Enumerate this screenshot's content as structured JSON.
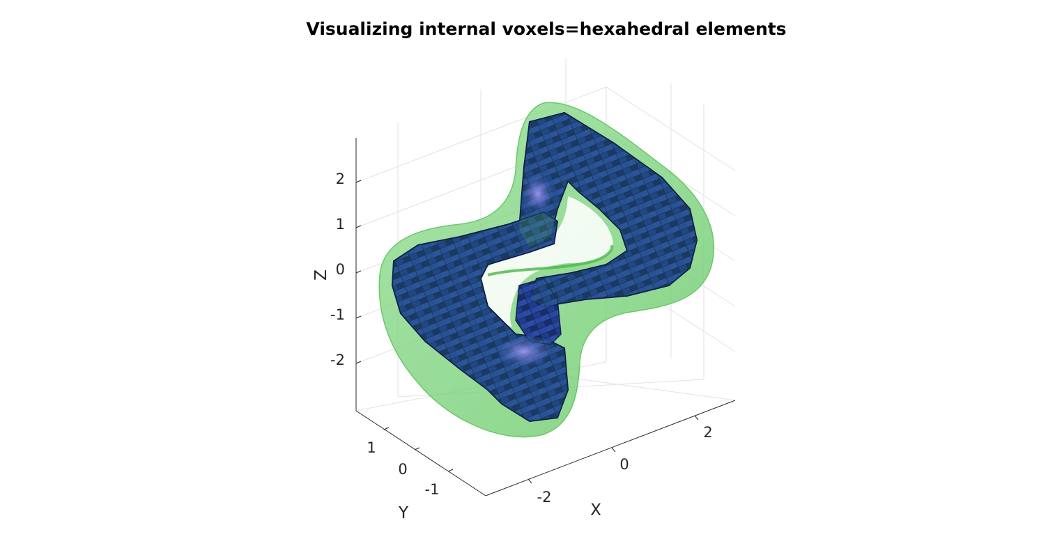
{
  "figure": {
    "title": "Visualizing internal voxels=hexahedral elements",
    "axes": {
      "x": {
        "label": "X",
        "ticks": [
          "-2",
          "0",
          "2"
        ]
      },
      "y": {
        "label": "Y",
        "ticks": [
          "1",
          "0",
          "-1"
        ]
      },
      "z": {
        "label": "Z",
        "ticks": [
          "2",
          "1",
          "0",
          "-1",
          "-2"
        ]
      }
    },
    "surface": {
      "description_color_outer": "#7fd07f",
      "description_color_inner": "#1a2e8a"
    },
    "colors": {
      "outer_surface": "#5cc85c",
      "voxel_dark": "#0c1c6e",
      "voxel_mid": "#1e3aa8",
      "voxel_light": "#3a5ee0",
      "highlight": "#8a7ae8"
    }
  }
}
